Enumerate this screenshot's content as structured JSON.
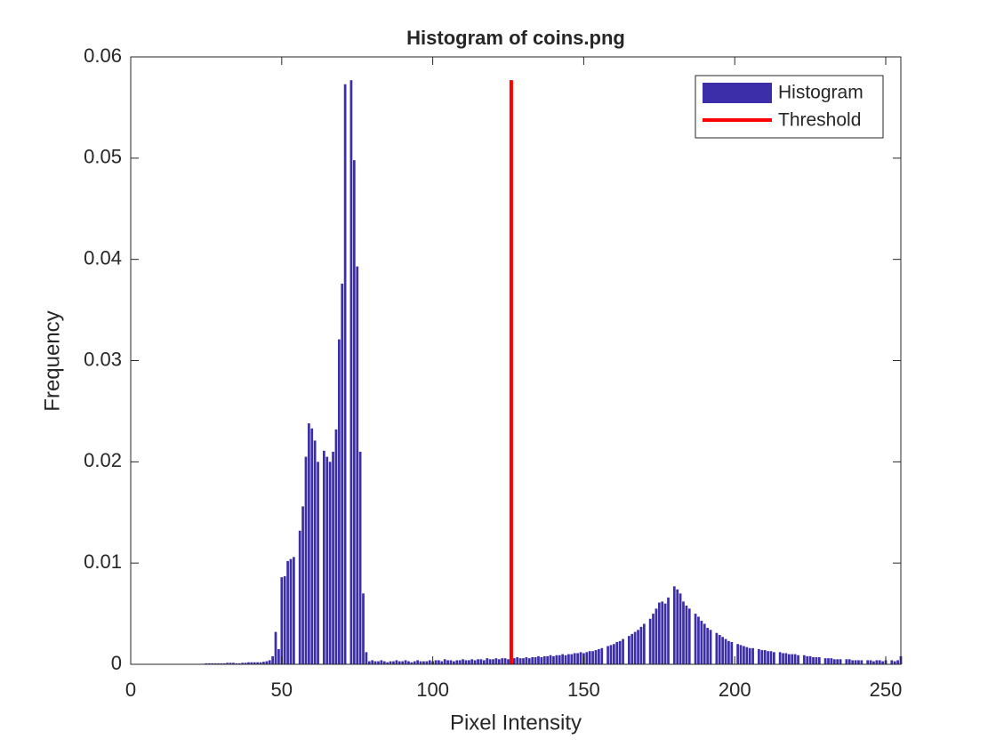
{
  "chart_data": {
    "type": "histogram",
    "title": "Histogram of coins.png",
    "x_label": "Pixel Intensity",
    "y_label": "Frequency",
    "xlim": [
      0,
      255
    ],
    "ylim": [
      0,
      0.06
    ],
    "xticks": [
      0,
      50,
      100,
      150,
      200,
      250
    ],
    "yticks": [
      0,
      0.01,
      0.02,
      0.03,
      0.04,
      0.05,
      0.06
    ],
    "legend": "northeast",
    "series": [
      {
        "name": "Histogram",
        "type": "bar",
        "color": "#3c2ea8",
        "x": [
          0,
          1,
          2,
          3,
          4,
          5,
          6,
          7,
          8,
          9,
          10,
          11,
          12,
          13,
          14,
          15,
          16,
          17,
          18,
          19,
          20,
          21,
          22,
          23,
          24,
          25,
          26,
          27,
          28,
          29,
          30,
          31,
          32,
          33,
          34,
          35,
          36,
          37,
          38,
          39,
          40,
          41,
          42,
          43,
          44,
          45,
          46,
          47,
          48,
          49,
          50,
          51,
          52,
          53,
          54,
          55,
          56,
          57,
          58,
          59,
          60,
          61,
          62,
          63,
          64,
          65,
          66,
          67,
          68,
          69,
          70,
          71,
          72,
          73,
          74,
          75,
          76,
          77,
          78,
          79,
          80,
          81,
          82,
          83,
          84,
          85,
          86,
          87,
          88,
          89,
          90,
          91,
          92,
          93,
          94,
          95,
          96,
          97,
          98,
          99,
          100,
          101,
          102,
          103,
          104,
          105,
          106,
          107,
          108,
          109,
          110,
          111,
          112,
          113,
          114,
          115,
          116,
          117,
          118,
          119,
          120,
          121,
          122,
          123,
          124,
          125,
          126,
          127,
          128,
          129,
          130,
          131,
          132,
          133,
          134,
          135,
          136,
          137,
          138,
          139,
          140,
          141,
          142,
          143,
          144,
          145,
          146,
          147,
          148,
          149,
          150,
          151,
          152,
          153,
          154,
          155,
          156,
          157,
          158,
          159,
          160,
          161,
          162,
          163,
          164,
          165,
          166,
          167,
          168,
          169,
          170,
          171,
          172,
          173,
          174,
          175,
          176,
          177,
          178,
          179,
          180,
          181,
          182,
          183,
          184,
          185,
          186,
          187,
          188,
          189,
          190,
          191,
          192,
          193,
          194,
          195,
          196,
          197,
          198,
          199,
          200,
          201,
          202,
          203,
          204,
          205,
          206,
          207,
          208,
          209,
          210,
          211,
          212,
          213,
          214,
          215,
          216,
          217,
          218,
          219,
          220,
          221,
          222,
          223,
          224,
          225,
          226,
          227,
          228,
          229,
          230,
          231,
          232,
          233,
          234,
          235,
          236,
          237,
          238,
          239,
          240,
          241,
          242,
          243,
          244,
          245,
          246,
          247,
          248,
          249,
          250,
          251,
          252,
          253,
          254,
          255
        ],
        "values": [
          0,
          0,
          0,
          0,
          0,
          0,
          0,
          0,
          0,
          0,
          0,
          0,
          0,
          0,
          0,
          0,
          0,
          0,
          0,
          0,
          0,
          0,
          0,
          5e-05,
          5e-05,
          0.0001,
          0.0001,
          0.0001,
          0.0001,
          0.0001,
          0.0001,
          0.0001,
          0.00015,
          0.00015,
          0.00015,
          0.0001,
          0.0001,
          0.00015,
          0.00015,
          0.0002,
          0.0002,
          0.0002,
          0.0002,
          0.0002,
          0.00025,
          0.0003,
          0.0004,
          0.0008,
          0.0032,
          0.0015,
          0.0086,
          0.0087,
          0.0102,
          0.0104,
          0.0106,
          0,
          0.0132,
          0.0156,
          0.0205,
          0.0238,
          0.0233,
          0.0221,
          0.02,
          0,
          0.0211,
          0.0205,
          0.02,
          0.021,
          0.0232,
          0.0321,
          0.0376,
          0.0573,
          0,
          0.0577,
          0.0498,
          0.0393,
          0.021,
          0.007,
          0.0012,
          0.0003,
          0.0004,
          0.0003,
          0.0003,
          0.0004,
          0.0003,
          0.0002,
          0.0003,
          0.0003,
          0.0004,
          0.0003,
          0.0003,
          0.0004,
          0.0003,
          0.0002,
          0.0003,
          0.0004,
          0.0003,
          0.0003,
          0.0003,
          0.0004,
          0.0003,
          0.0004,
          0.0004,
          0.0003,
          0.0005,
          0.0004,
          0.0004,
          0.0003,
          0.0004,
          0.0004,
          0.0005,
          0.0004,
          0.0004,
          0.0005,
          0.0004,
          0.0005,
          0.0005,
          0.0004,
          0.0006,
          0.0005,
          0.0005,
          0.0006,
          0.0005,
          0.0006,
          0.0006,
          0.0005,
          0.0006,
          0.0006,
          0.0007,
          0.0006,
          0.0006,
          0.0007,
          0.0006,
          0.0007,
          0.0007,
          0.0008,
          0.0007,
          0.0008,
          0.0008,
          0.0009,
          0.0008,
          0.0009,
          0.0009,
          0.001,
          0.0009,
          0.001,
          0.001,
          0.0011,
          0.0011,
          0.0012,
          0.0011,
          0.0012,
          0.0013,
          0.0013,
          0.0014,
          0.0015,
          0.0016,
          0,
          0.0018,
          0.0019,
          0.002,
          0.0022,
          0.0023,
          0.0025,
          0,
          0.0028,
          0.003,
          0.0032,
          0.0034,
          0.0037,
          0.004,
          0,
          0.0045,
          0.005,
          0.0055,
          0.0061,
          0.0062,
          0.006,
          0.0066,
          0,
          0.0077,
          0.0074,
          0.007,
          0.0062,
          0.0058,
          0.0055,
          0,
          0.005,
          0.0047,
          0.0043,
          0.004,
          0.0036,
          0.0034,
          0,
          0.0031,
          0.0029,
          0.0027,
          0.0025,
          0.0023,
          0.0022,
          0,
          0.002,
          0.0019,
          0.0018,
          0.0017,
          0.0016,
          0.0016,
          0,
          0.0015,
          0.0014,
          0.0014,
          0.0013,
          0.0013,
          0.0012,
          0,
          0.0012,
          0.0011,
          0.0011,
          0.001,
          0.001,
          0.001,
          0.0009,
          0,
          0.0009,
          0.0008,
          0.0008,
          0.0007,
          0.0007,
          0.0007,
          0,
          0.0006,
          0.0006,
          0.0006,
          0.0005,
          0.0005,
          0.0005,
          0,
          0.0005,
          0.0005,
          0.0004,
          0.0004,
          0.0004,
          0.0004,
          0,
          0.0004,
          0.0004,
          0.0003,
          0.0004,
          0.0004,
          0.0003,
          0.0004,
          0,
          0.0004,
          0.0003,
          0.0004,
          0.0008
        ]
      },
      {
        "name": "Threshold",
        "type": "line",
        "color": "#ff0000",
        "x": [
          126,
          126
        ],
        "values": [
          0,
          0.0577
        ]
      }
    ]
  }
}
